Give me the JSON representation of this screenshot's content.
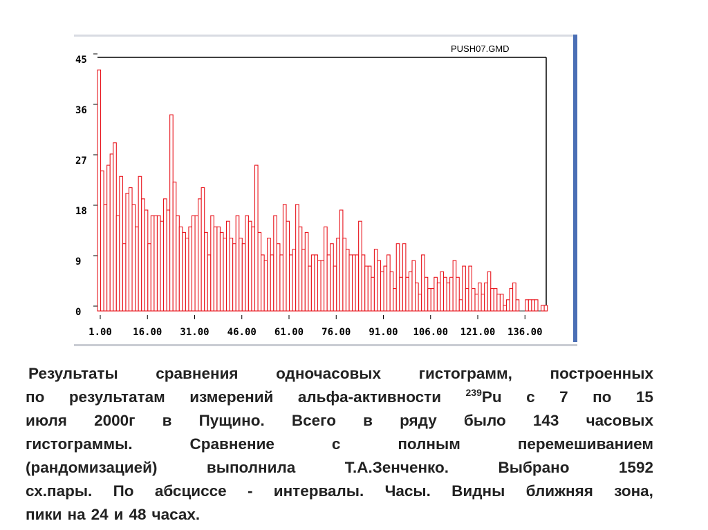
{
  "chart_data": {
    "type": "bar",
    "title": "PUSH07.GMD",
    "xlabel": "",
    "ylabel": "",
    "ylim": [
      0,
      45
    ],
    "xlim": [
      1,
      143
    ],
    "y_ticks": [
      "0",
      "9",
      "18",
      "27",
      "36",
      "45"
    ],
    "x_ticks": [
      "1.00",
      "16.00",
      "31.00",
      "46.00",
      "61.00",
      "76.00",
      "91.00",
      "106.00",
      "121.00",
      "136.00"
    ],
    "bar_color": "#e8141c",
    "values": [
      43,
      25,
      19,
      26,
      28,
      30,
      17,
      24,
      12,
      21,
      22,
      19,
      15,
      24,
      20,
      18,
      12,
      17,
      17,
      17,
      16,
      20,
      18,
      35,
      23,
      17,
      15,
      14,
      13,
      15,
      17,
      17,
      20,
      22,
      14,
      10,
      17,
      15,
      15,
      14,
      13,
      16,
      13,
      12,
      17,
      13,
      12,
      17,
      16,
      15,
      26,
      14,
      10,
      9,
      13,
      10,
      17,
      12,
      10,
      19,
      16,
      10,
      11,
      19,
      15,
      11,
      14,
      8,
      10,
      10,
      9,
      9,
      15,
      10,
      12,
      8,
      13,
      18,
      13,
      11,
      10,
      10,
      10,
      16,
      10,
      8,
      8,
      6,
      11,
      9,
      7,
      8,
      10,
      7,
      4,
      12,
      6,
      12,
      6,
      7,
      9,
      5,
      3,
      10,
      6,
      4,
      4,
      6,
      5,
      7,
      6,
      5,
      6,
      9,
      6,
      2,
      8,
      4,
      8,
      4,
      3,
      5,
      3,
      5,
      7,
      4,
      4,
      3,
      3,
      1,
      2,
      4,
      5,
      2,
      0,
      0,
      2,
      2,
      2,
      2,
      0,
      1,
      1
    ]
  },
  "caption": {
    "lines": [
      [
        "Результаты",
        "сравнения",
        "одночасовых",
        "гистограмм,",
        "построенных"
      ],
      [
        "по",
        "результатам",
        "измерений",
        "альфа-активности"
      ],
      [
        "июля",
        "2000г",
        "в",
        "Пущино.",
        "Всего",
        "в",
        "ряду",
        "было",
        "143",
        "часовых"
      ],
      [
        "гистограммы.",
        "Сравнение",
        "с",
        "полным",
        "перемешиванием"
      ],
      [
        "(рандомизацией)",
        "выполнила",
        "Т.А.Зенченко.",
        "Выбрано",
        "1592"
      ],
      [
        "сх.пары.",
        "По",
        "абсциссе",
        "-",
        "интервалы.",
        "Часы.",
        "Видны",
        "ближняя",
        "зона,"
      ],
      [
        "пики",
        "на",
        "24",
        "и",
        "48",
        "часах."
      ]
    ],
    "isotope_mass": "239",
    "isotope_rest": [
      "Pu",
      "с",
      "7",
      "по",
      "15"
    ]
  }
}
